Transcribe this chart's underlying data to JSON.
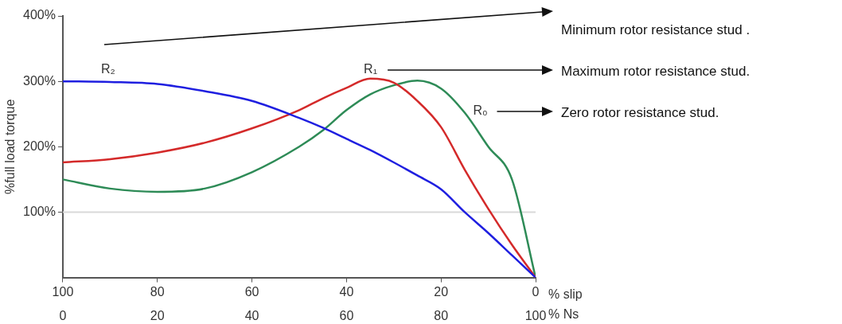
{
  "chart_data": {
    "type": "line",
    "ylabel": "%full load torque",
    "xlabel": "% slip",
    "x2label": "% Ns",
    "x": [
      100,
      90,
      80,
      70,
      60,
      50,
      45,
      40,
      35,
      30,
      25,
      20,
      15,
      10,
      5,
      0
    ],
    "series": [
      {
        "name": "R₂",
        "color": "#1f1fe0",
        "values": [
          300,
          299,
          296,
          285,
          270,
          244,
          229,
          212,
          195,
          176,
          156,
          135,
          100,
          68,
          34,
          0
        ]
      },
      {
        "name": "R₁",
        "color": "#d42a2a",
        "values": [
          176,
          181,
          191,
          206,
          228,
          256,
          274,
          290,
          304,
          298,
          270,
          230,
          165,
          105,
          50,
          0
        ]
      },
      {
        "name": "R₀",
        "color": "#2e8b57",
        "values": [
          150,
          136,
          131,
          136,
          161,
          200,
          225,
          256,
          280,
          294,
          301,
          289,
          252,
          200,
          150,
          0
        ]
      }
    ],
    "xlim": [
      100,
      0
    ],
    "xticks": [
      100,
      80,
      60,
      40,
      20,
      0
    ],
    "x2lim": [
      0,
      100
    ],
    "x2ticks": [
      0,
      20,
      40,
      60,
      80,
      100
    ],
    "ylim": [
      0,
      400
    ],
    "yticks": [
      {
        "value": 100,
        "label": "100%"
      },
      {
        "value": 200,
        "label": "200%"
      },
      {
        "value": 300,
        "label": "300%"
      },
      {
        "value": 400,
        "label": "400%"
      }
    ],
    "ref_lines": [
      {
        "axis": "y",
        "value": 100,
        "color": "#d9d9d9"
      }
    ],
    "grid": false,
    "legend": false,
    "marker": "none",
    "line_style": "solid",
    "annotations": [
      "Minimum rotor resistance stud .",
      "Maximum rotor resistance stud.",
      "Zero rotor resistance stud."
    ]
  }
}
